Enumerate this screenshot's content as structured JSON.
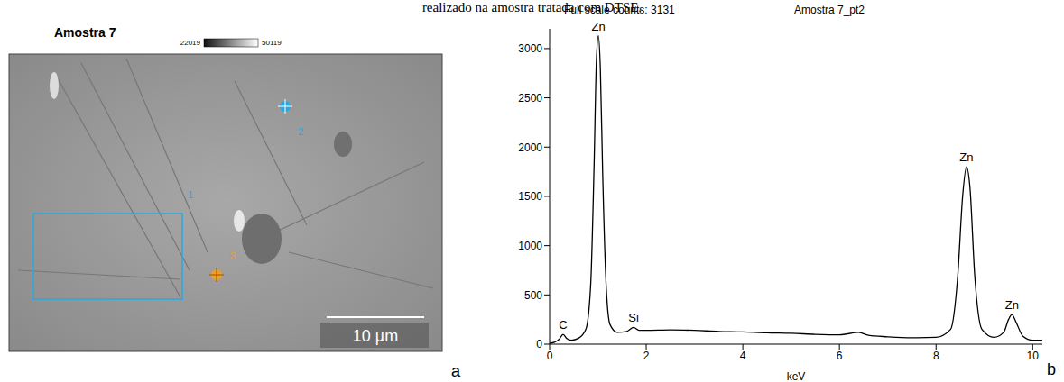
{
  "caption": "realizado na amostra tratada com DTSE.",
  "image_panel": {
    "letter": "a",
    "title": "Amostra 7",
    "colorbar": {
      "range": [
        22019,
        50119
      ],
      "ticks": [
        22019,
        50119
      ]
    },
    "scale_bar": "10 µm",
    "markers": [
      "1",
      "2",
      "3"
    ]
  },
  "chart_data": {
    "type": "line",
    "letter": "b",
    "title": "Full scale counts: 3131",
    "subtitle": "Amostra 7_pt2",
    "x_label": "keV",
    "x": [
      0,
      0.1,
      0.2,
      0.28,
      0.35,
      0.45,
      0.6,
      0.75,
      0.85,
      0.92,
      0.97,
      1.01,
      1.05,
      1.1,
      1.17,
      1.25,
      1.4,
      1.6,
      1.74,
      1.85,
      2.0,
      2.5,
      3,
      3.5,
      4,
      4.5,
      5,
      5.5,
      6,
      6.4,
      6.6,
      7,
      7.5,
      8,
      8.3,
      8.45,
      8.55,
      8.63,
      8.7,
      8.8,
      8.95,
      9.2,
      9.4,
      9.5,
      9.57,
      9.65,
      9.8,
      10,
      10.2
    ],
    "values": [
      10,
      20,
      50,
      100,
      60,
      40,
      60,
      150,
      600,
      1800,
      2900,
      3131,
      2800,
      1700,
      600,
      200,
      120,
      130,
      170,
      140,
      140,
      145,
      140,
      130,
      125,
      115,
      110,
      100,
      95,
      120,
      90,
      75,
      65,
      70,
      150,
      700,
      1500,
      1800,
      1600,
      700,
      150,
      70,
      120,
      250,
      300,
      230,
      80,
      40,
      40
    ],
    "color": "#000000",
    "xlim": [
      0,
      10.2
    ],
    "xticks": [
      0,
      2,
      4,
      6,
      8,
      10
    ],
    "ylim": [
      0,
      3200
    ],
    "yticks": [
      0,
      500,
      1000,
      1500,
      2000,
      2500,
      3000
    ],
    "grid": false,
    "annotations": [
      {
        "text": "C",
        "x": 0.28,
        "y": 100
      },
      {
        "text": "Zn",
        "x": 1.01,
        "y": 3131
      },
      {
        "text": "Si",
        "x": 1.74,
        "y": 170
      },
      {
        "text": "Zn",
        "x": 8.63,
        "y": 1800
      },
      {
        "text": "Zn",
        "x": 9.57,
        "y": 300
      }
    ]
  }
}
